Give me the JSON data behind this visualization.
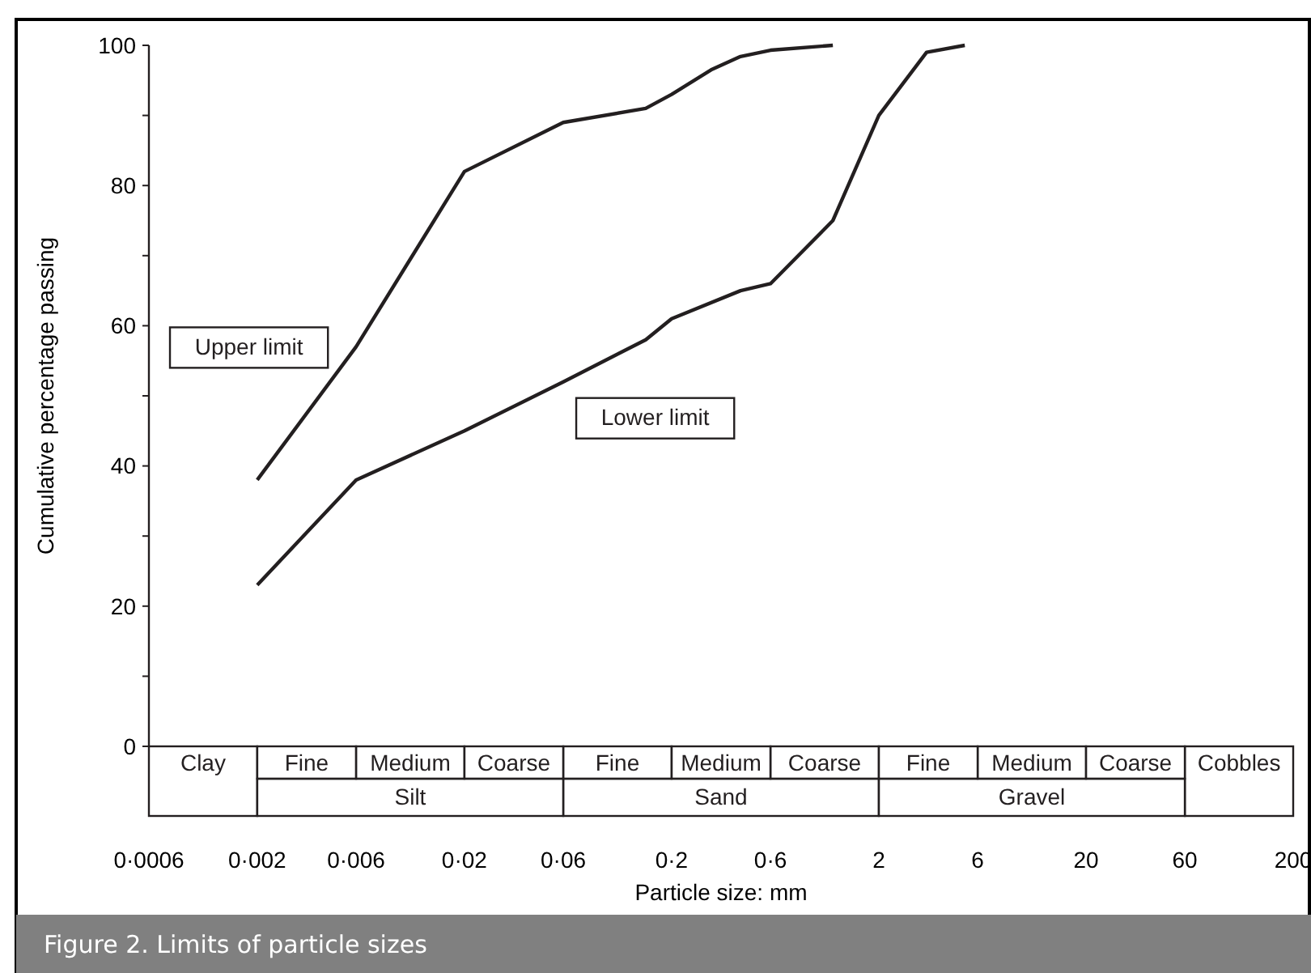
{
  "chart_data": {
    "type": "line",
    "title": "Figure 2. Limits of particle sizes",
    "xlabel": "Particle size: mm",
    "ylabel": "Cumulative percentage passing",
    "log": "x",
    "xlim": [
      0.0006,
      200
    ],
    "ylim": [
      0,
      100
    ],
    "xticks": [
      {
        "value": 0.0006,
        "label": "0·0006"
      },
      {
        "value": 0.002,
        "label": "0·002"
      },
      {
        "value": 0.006,
        "label": "0·006"
      },
      {
        "value": 0.02,
        "label": "0·02"
      },
      {
        "value": 0.06,
        "label": "0·06"
      },
      {
        "value": 0.2,
        "label": "0·2"
      },
      {
        "value": 0.6,
        "label": "0·6"
      },
      2,
      6,
      20,
      60,
      200
    ],
    "yticks": [
      0,
      {
        "value": 10,
        "label": null
      },
      20,
      {
        "value": 30,
        "label": null
      },
      40,
      {
        "value": 50,
        "label": null
      },
      60,
      {
        "value": 70,
        "label": null
      },
      80,
      {
        "value": 90,
        "label": null
      },
      100
    ],
    "grid": false,
    "legend": false,
    "marker": "none",
    "line_style": "solid",
    "series": [
      {
        "name": "Upper limit",
        "color": "#231f20",
        "x": [
          0.002,
          0.006,
          0.02,
          0.06,
          0.15,
          0.2,
          0.31,
          0.43,
          0.6,
          1.2
        ],
        "values": [
          38,
          57,
          82,
          89,
          91,
          93,
          96.5,
          98.4,
          99.3,
          100
        ]
      },
      {
        "name": "Lower limit",
        "color": "#231f20",
        "x": [
          0.002,
          0.006,
          0.02,
          0.06,
          0.15,
          0.2,
          0.43,
          0.6,
          1.2,
          2,
          3.4,
          5.2
        ],
        "values": [
          23,
          38,
          45,
          52,
          58,
          61,
          65,
          66,
          75,
          90,
          99,
          100
        ]
      }
    ],
    "annotations": [
      "Clay",
      "Fine",
      "Medium",
      "Coarse",
      "Fine",
      "Medium",
      "Coarse",
      "Fine",
      "Medium",
      "Coarse",
      "Cobbles",
      "Silt",
      "Sand",
      "Gravel"
    ]
  }
}
